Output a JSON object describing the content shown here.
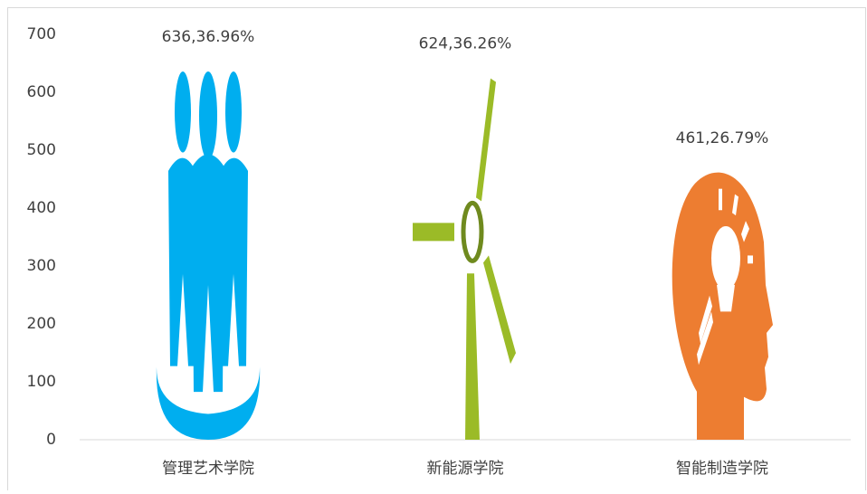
{
  "chart_data": {
    "type": "pictograph",
    "categories": [
      "管理艺术学院",
      "新能源学院",
      "智能制造学院"
    ],
    "values": [
      636,
      624,
      461
    ],
    "value_labels": [
      "636,36.96%",
      "624,36.26%",
      "461,26.79%"
    ],
    "colors": [
      "#00aeef",
      "#9bbb27",
      "#ed7d31"
    ],
    "ylim": [
      0,
      700
    ],
    "yticks": [
      0,
      100,
      200,
      300,
      400,
      500,
      600,
      700
    ]
  }
}
